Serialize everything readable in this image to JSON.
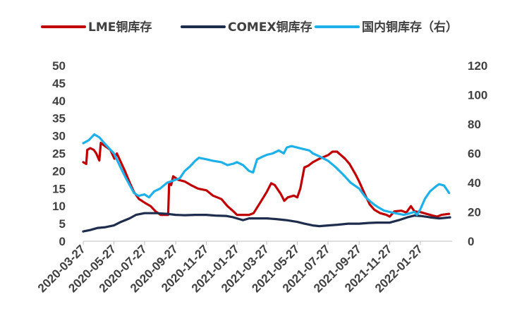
{
  "chart_data": {
    "type": "line",
    "x": [
      "2020-03-27",
      "2020-05-27",
      "2020-07-27",
      "2020-09-27",
      "2020-11-27",
      "2021-01-27",
      "2021-03-27",
      "2021-05-27",
      "2021-07-27",
      "2021-09-27",
      "2021-11-27",
      "2022-01-27"
    ],
    "x_range": [
      "2020-03-27",
      "2022-03-31"
    ],
    "ylim_left": [
      0,
      50
    ],
    "yticks_left": [
      0,
      5,
      10,
      15,
      20,
      25,
      30,
      35,
      40,
      45,
      50
    ],
    "ylim_right": [
      0,
      120
    ],
    "yticks_right": [
      0,
      20,
      40,
      60,
      80,
      100,
      120
    ],
    "grid": false,
    "legend_position": "top",
    "series": [
      {
        "name": "LME铜库存",
        "axis": "left",
        "color": "#C00000",
        "points": [
          [
            "2020-03-27",
            22.5
          ],
          [
            "2020-04-02",
            22.0
          ],
          [
            "2020-04-04",
            26.0
          ],
          [
            "2020-04-10",
            26.5
          ],
          [
            "2020-04-17",
            26.0
          ],
          [
            "2020-04-22",
            25.0
          ],
          [
            "2020-04-28",
            23.0
          ],
          [
            "2020-05-01",
            28.0
          ],
          [
            "2020-05-10",
            27.0
          ],
          [
            "2020-05-20",
            26.0
          ],
          [
            "2020-05-28",
            23.5
          ],
          [
            "2020-06-02",
            25.0
          ],
          [
            "2020-06-10",
            22.5
          ],
          [
            "2020-06-18",
            20.0
          ],
          [
            "2020-06-28",
            16.5
          ],
          [
            "2020-07-06",
            14.0
          ],
          [
            "2020-07-16",
            12.0
          ],
          [
            "2020-07-27",
            11.0
          ],
          [
            "2020-08-08",
            10.0
          ],
          [
            "2020-08-18",
            8.5
          ],
          [
            "2020-08-28",
            7.5
          ],
          [
            "2020-09-08",
            7.5
          ],
          [
            "2020-09-12",
            7.5
          ],
          [
            "2020-09-14",
            16.5
          ],
          [
            "2020-09-18",
            16.0
          ],
          [
            "2020-09-22",
            18.5
          ],
          [
            "2020-10-02",
            17.5
          ],
          [
            "2020-10-15",
            17.0
          ],
          [
            "2020-10-27",
            16.0
          ],
          [
            "2020-11-10",
            15.0
          ],
          [
            "2020-11-27",
            14.5
          ],
          [
            "2020-12-10",
            13.0
          ],
          [
            "2020-12-27",
            12.0
          ],
          [
            "2021-01-08",
            10.0
          ],
          [
            "2021-01-20",
            8.5
          ],
          [
            "2021-01-27",
            7.5
          ],
          [
            "2021-02-08",
            7.5
          ],
          [
            "2021-02-20",
            7.5
          ],
          [
            "2021-03-01",
            8.0
          ],
          [
            "2021-03-12",
            10.5
          ],
          [
            "2021-03-27",
            14.0
          ],
          [
            "2021-04-05",
            16.5
          ],
          [
            "2021-04-12",
            16.0
          ],
          [
            "2021-04-24",
            13.5
          ],
          [
            "2021-05-01",
            11.5
          ],
          [
            "2021-05-08",
            12.5
          ],
          [
            "2021-05-20",
            13.0
          ],
          [
            "2021-05-27",
            12.5
          ],
          [
            "2021-06-02",
            15.0
          ],
          [
            "2021-06-10",
            21.0
          ],
          [
            "2021-06-18",
            21.5
          ],
          [
            "2021-06-27",
            22.5
          ],
          [
            "2021-07-10",
            23.5
          ],
          [
            "2021-07-27",
            24.5
          ],
          [
            "2021-08-05",
            25.5
          ],
          [
            "2021-08-14",
            25.5
          ],
          [
            "2021-08-22",
            24.5
          ],
          [
            "2021-08-30",
            23.5
          ],
          [
            "2021-09-08",
            22.0
          ],
          [
            "2021-09-20",
            19.0
          ],
          [
            "2021-09-27",
            17.0
          ],
          [
            "2021-10-08",
            13.5
          ],
          [
            "2021-10-18",
            10.5
          ],
          [
            "2021-10-27",
            9.0
          ],
          [
            "2021-11-08",
            8.0
          ],
          [
            "2021-11-20",
            7.5
          ],
          [
            "2021-11-27",
            7.0
          ],
          [
            "2021-12-06",
            8.5
          ],
          [
            "2021-12-20",
            8.7
          ],
          [
            "2021-12-30",
            8.2
          ],
          [
            "2022-01-08",
            10.0
          ],
          [
            "2022-01-15",
            8.5
          ],
          [
            "2022-01-27",
            8.3
          ],
          [
            "2022-02-08",
            7.8
          ],
          [
            "2022-02-20",
            7.3
          ],
          [
            "2022-03-01",
            7.0
          ],
          [
            "2022-03-10",
            7.5
          ],
          [
            "2022-03-25",
            7.8
          ]
        ]
      },
      {
        "name": "COMEX铜库存",
        "axis": "left",
        "color": "#1F2D4D",
        "points": [
          [
            "2020-03-27",
            2.8
          ],
          [
            "2020-04-10",
            3.2
          ],
          [
            "2020-04-25",
            3.8
          ],
          [
            "2020-05-10",
            4.0
          ],
          [
            "2020-05-27",
            4.5
          ],
          [
            "2020-06-10",
            5.5
          ],
          [
            "2020-06-27",
            6.5
          ],
          [
            "2020-07-10",
            7.5
          ],
          [
            "2020-07-27",
            8.0
          ],
          [
            "2020-08-20",
            8.0
          ],
          [
            "2020-09-10",
            7.8
          ],
          [
            "2020-09-27",
            7.5
          ],
          [
            "2020-10-15",
            7.4
          ],
          [
            "2020-11-05",
            7.5
          ],
          [
            "2020-11-27",
            7.5
          ],
          [
            "2020-12-15",
            7.3
          ],
          [
            "2021-01-05",
            7.2
          ],
          [
            "2021-01-20",
            6.8
          ],
          [
            "2021-01-27",
            6.5
          ],
          [
            "2021-02-08",
            6.0
          ],
          [
            "2021-02-20",
            6.5
          ],
          [
            "2021-03-10",
            6.5
          ],
          [
            "2021-03-27",
            6.5
          ],
          [
            "2021-04-15",
            6.3
          ],
          [
            "2021-05-05",
            6.0
          ],
          [
            "2021-05-27",
            5.5
          ],
          [
            "2021-06-10",
            5.0
          ],
          [
            "2021-06-27",
            4.5
          ],
          [
            "2021-07-10",
            4.3
          ],
          [
            "2021-07-27",
            4.5
          ],
          [
            "2021-08-15",
            4.7
          ],
          [
            "2021-09-05",
            5.0
          ],
          [
            "2021-09-27",
            5.0
          ],
          [
            "2021-10-15",
            5.2
          ],
          [
            "2021-11-01",
            5.3
          ],
          [
            "2021-11-27",
            5.3
          ],
          [
            "2021-12-15",
            6.0
          ],
          [
            "2022-01-01",
            6.8
          ],
          [
            "2022-01-15",
            7.3
          ],
          [
            "2022-01-27",
            7.2
          ],
          [
            "2022-02-15",
            6.8
          ],
          [
            "2022-03-05",
            6.5
          ],
          [
            "2022-03-20",
            6.7
          ],
          [
            "2022-03-27",
            6.8
          ]
        ]
      },
      {
        "name": "国内铜库存（右）",
        "axis": "right",
        "color": "#1EB0E8",
        "points": [
          [
            "2020-03-27",
            67
          ],
          [
            "2020-04-07",
            69
          ],
          [
            "2020-04-18",
            73
          ],
          [
            "2020-04-28",
            71
          ],
          [
            "2020-05-08",
            67
          ],
          [
            "2020-05-27",
            60
          ],
          [
            "2020-06-10",
            50
          ],
          [
            "2020-06-20",
            43
          ],
          [
            "2020-06-28",
            38
          ],
          [
            "2020-07-06",
            33
          ],
          [
            "2020-07-15",
            31
          ],
          [
            "2020-07-27",
            32
          ],
          [
            "2020-08-05",
            30
          ],
          [
            "2020-08-15",
            34
          ],
          [
            "2020-08-27",
            36
          ],
          [
            "2020-09-10",
            40
          ],
          [
            "2020-09-27",
            42
          ],
          [
            "2020-10-05",
            43
          ],
          [
            "2020-10-15",
            48
          ],
          [
            "2020-10-25",
            51
          ],
          [
            "2020-11-05",
            55
          ],
          [
            "2020-11-12",
            57
          ],
          [
            "2020-11-27",
            56
          ],
          [
            "2020-12-10",
            55
          ],
          [
            "2020-12-27",
            54
          ],
          [
            "2021-01-08",
            52
          ],
          [
            "2021-01-20",
            53
          ],
          [
            "2021-01-27",
            54
          ],
          [
            "2021-02-08",
            52
          ],
          [
            "2021-02-20",
            48
          ],
          [
            "2021-02-28",
            47
          ],
          [
            "2021-03-08",
            56
          ],
          [
            "2021-03-20",
            58
          ],
          [
            "2021-03-27",
            59
          ],
          [
            "2021-04-08",
            60
          ],
          [
            "2021-04-20",
            62
          ],
          [
            "2021-04-30",
            60
          ],
          [
            "2021-05-06",
            64
          ],
          [
            "2021-05-15",
            65
          ],
          [
            "2021-05-27",
            64
          ],
          [
            "2021-06-08",
            63
          ],
          [
            "2021-06-20",
            62
          ],
          [
            "2021-06-27",
            60
          ],
          [
            "2021-07-10",
            58
          ],
          [
            "2021-07-27",
            55
          ],
          [
            "2021-08-10",
            51
          ],
          [
            "2021-08-25",
            46
          ],
          [
            "2021-09-10",
            40
          ],
          [
            "2021-09-27",
            36
          ],
          [
            "2021-10-10",
            30
          ],
          [
            "2021-10-20",
            27
          ],
          [
            "2021-10-27",
            25
          ],
          [
            "2021-11-05",
            23
          ],
          [
            "2021-11-15",
            21
          ],
          [
            "2021-11-27",
            20
          ],
          [
            "2021-12-10",
            19
          ],
          [
            "2021-12-25",
            18
          ],
          [
            "2022-01-05",
            19
          ],
          [
            "2022-01-15",
            20
          ],
          [
            "2022-01-20",
            18
          ],
          [
            "2022-01-27",
            22
          ],
          [
            "2022-02-05",
            29
          ],
          [
            "2022-02-15",
            34
          ],
          [
            "2022-02-25",
            37
          ],
          [
            "2022-03-05",
            39
          ],
          [
            "2022-03-15",
            38
          ],
          [
            "2022-03-25",
            33
          ]
        ]
      }
    ]
  }
}
